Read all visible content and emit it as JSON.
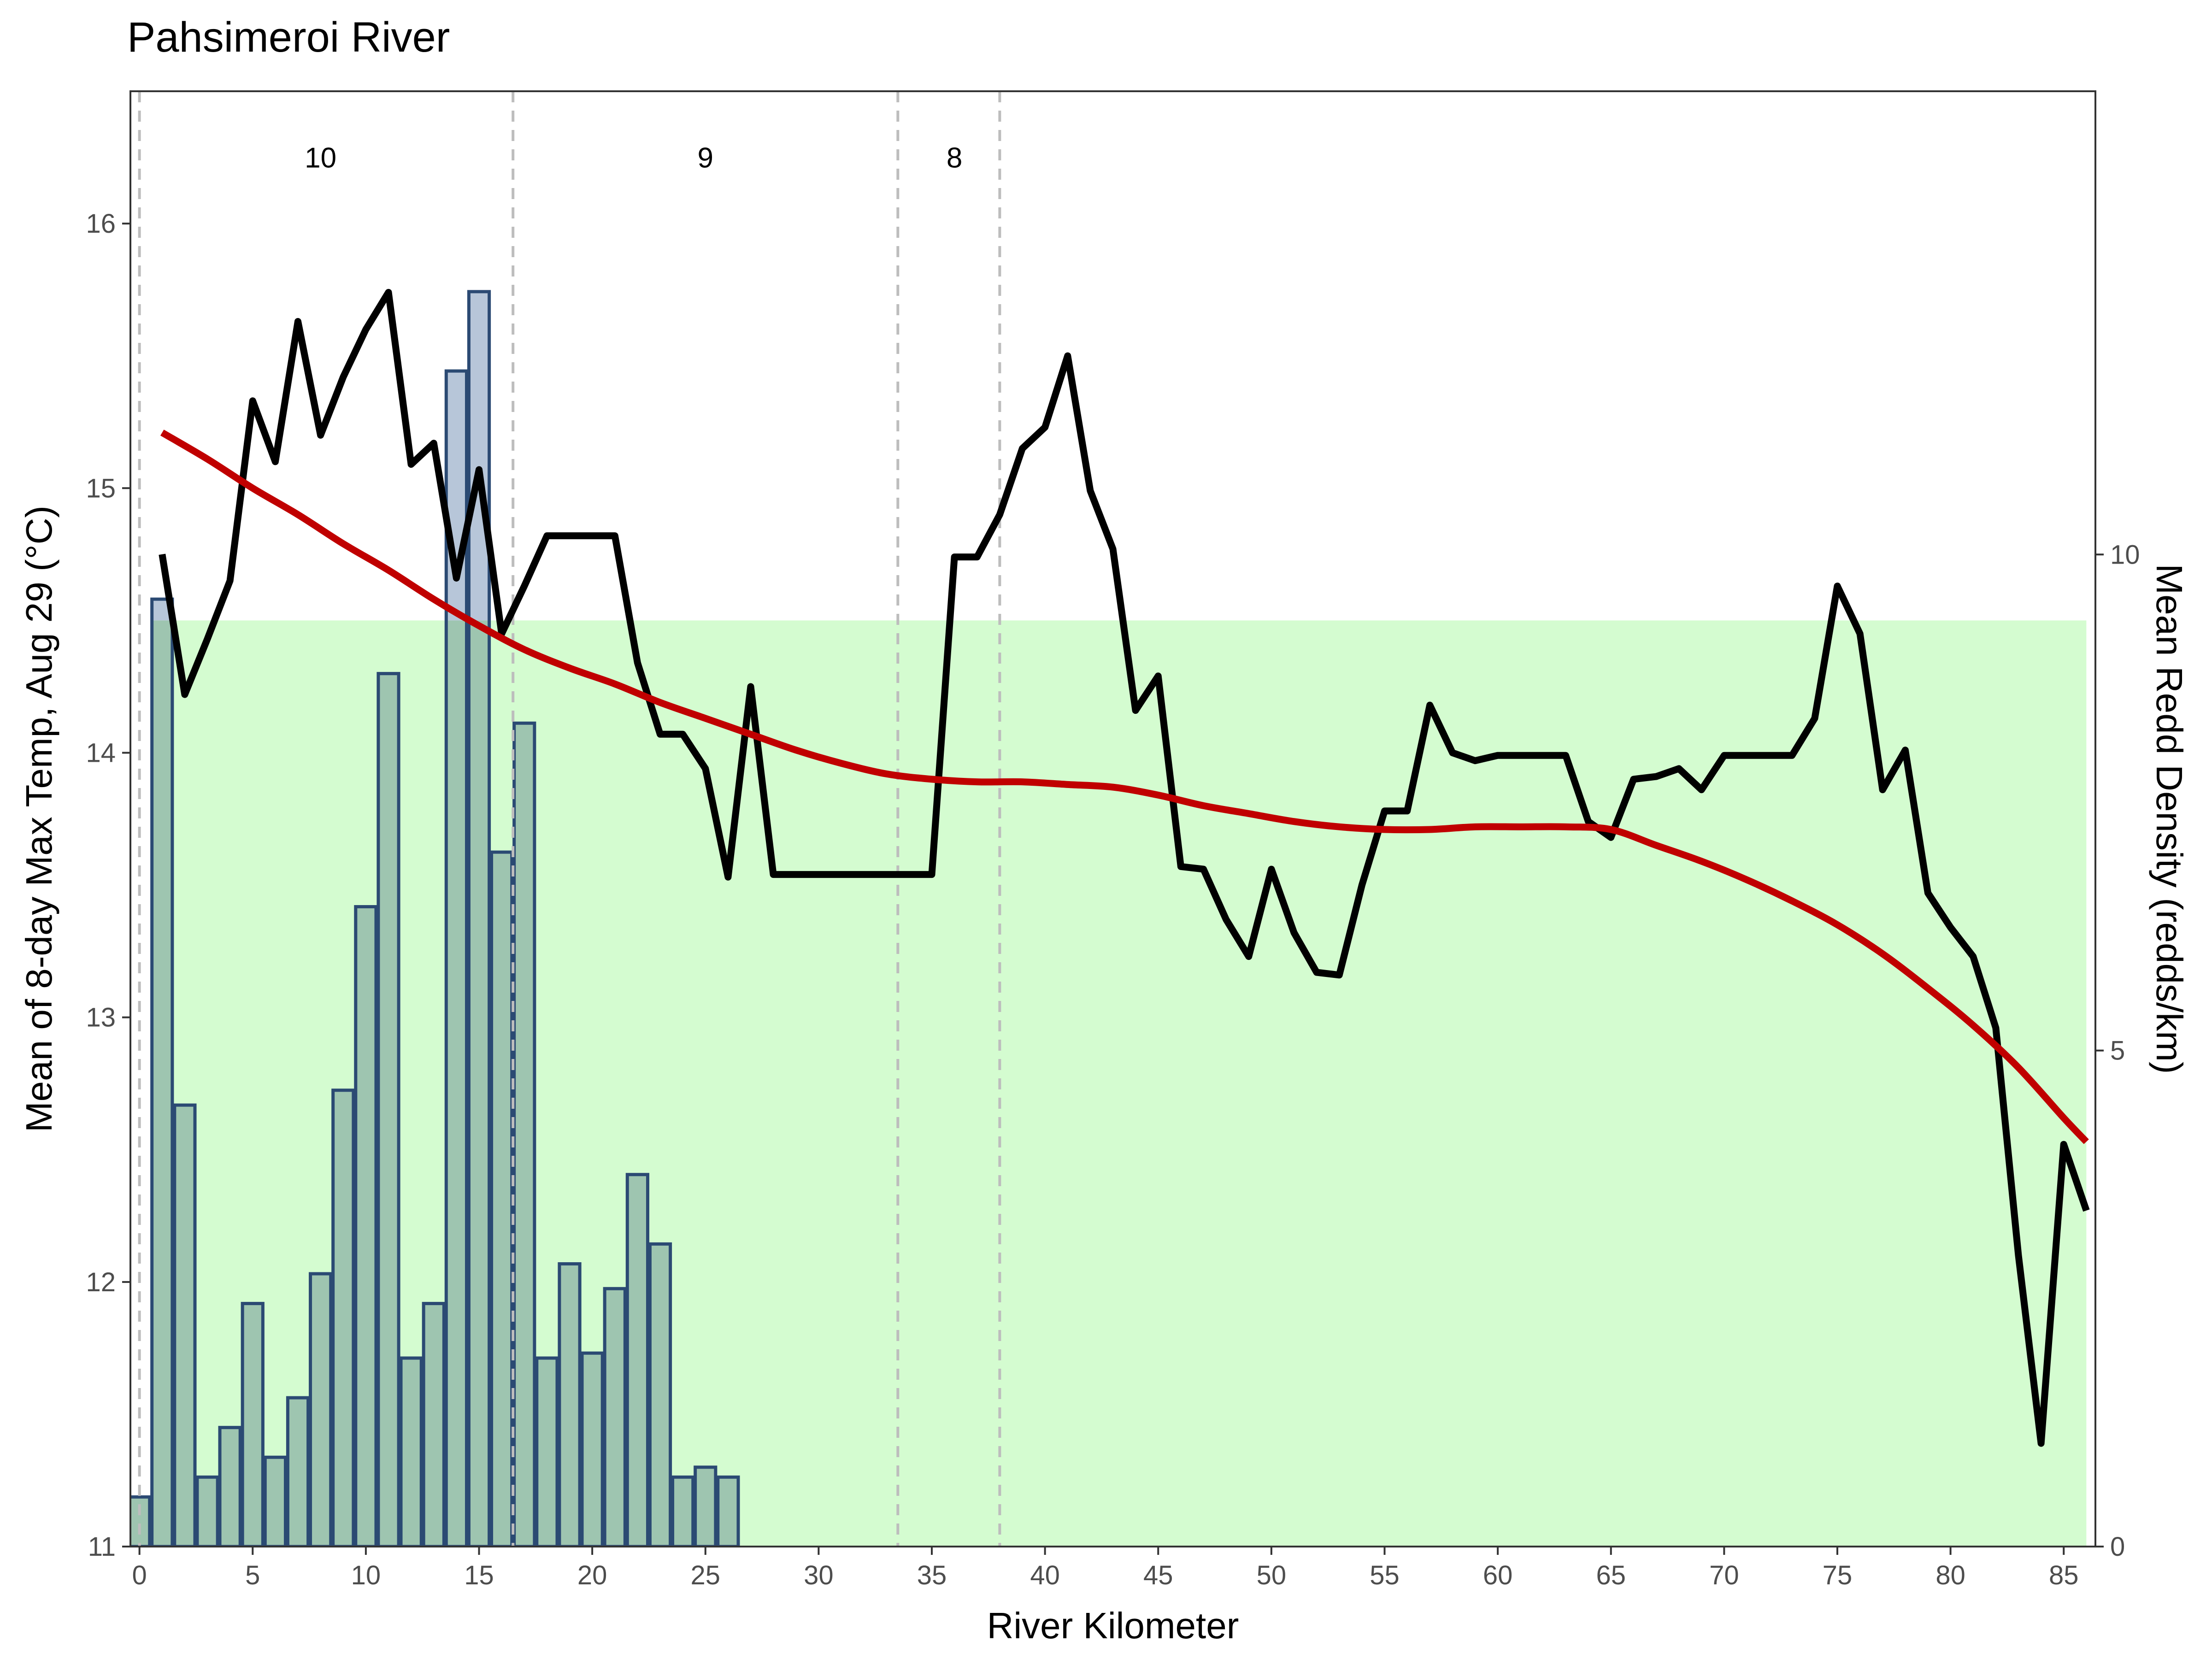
{
  "chart_data": {
    "type": "bar+line",
    "title": "Pahsimeroi River",
    "xlabel": "River Kilometer",
    "ylabel_left": "Mean of 8-day Max Temp, Aug 29 (°C)",
    "ylabel_right": "Mean Redd Density (redds/km)",
    "xlim": [
      -0.4,
      86.4
    ],
    "ylim_left": [
      11,
      16.5
    ],
    "ylim_right": [
      0,
      14.67
    ],
    "x_ticks": [
      0,
      5,
      10,
      15,
      20,
      25,
      30,
      35,
      40,
      45,
      50,
      55,
      60,
      65,
      70,
      75,
      80,
      85
    ],
    "x_tick_labels": [
      "0",
      "5",
      "10",
      "15",
      "20",
      "25",
      "30",
      "35",
      "40",
      "45",
      "50",
      "55",
      "60",
      "65",
      "70",
      "75",
      "80",
      "85"
    ],
    "y_ticks_left": [
      11,
      12,
      13,
      14,
      15,
      16
    ],
    "y_tick_labels_left": [
      "11",
      "12",
      "13",
      "14",
      "15",
      "16"
    ],
    "y_ticks_right": [
      0,
      5,
      10
    ],
    "y_tick_labels_right": [
      "0",
      "5",
      "10"
    ],
    "grid": false,
    "colors": {
      "band": "#d4fcd0",
      "bar_fill_low": "#9ec5b0",
      "bar_fill_high": "#b7c6d9",
      "bar_stroke": "#2b4a73",
      "temp_line": "#000000",
      "smooth_line": "#c00000",
      "vline": "#bdbdbd",
      "panel_border": "#333333"
    },
    "suitable_band": {
      "y_from": 11,
      "y_to": 14.5,
      "x_from": 0.5,
      "x_to": 86
    },
    "segments": {
      "boundaries_x": [
        0,
        16.5,
        33.5,
        38
      ],
      "labels": [
        {
          "text": "10",
          "x": 8
        },
        {
          "text": "9",
          "x": 25
        },
        {
          "text": "8",
          "x": 36
        }
      ],
      "label_y": 16.25
    },
    "redd_density_bars": {
      "x": [
        0,
        1,
        2,
        3,
        4,
        5,
        6,
        7,
        8,
        9,
        10,
        11,
        12,
        13,
        14,
        15,
        16,
        17,
        18,
        19,
        20,
        21,
        22,
        23,
        24,
        25,
        26
      ],
      "values": [
        0.5,
        9.55,
        4.45,
        0.7,
        1.2,
        2.45,
        0.9,
        1.5,
        2.75,
        4.6,
        6.45,
        8.8,
        1.9,
        2.45,
        11.85,
        12.65,
        7.0,
        8.3,
        1.9,
        2.85,
        1.95,
        2.6,
        3.75,
        3.05,
        0.7,
        0.8,
        0.7
      ]
    },
    "temperature_line": {
      "x": [
        1,
        2,
        3,
        4,
        5,
        6,
        7,
        8,
        9,
        10,
        11,
        12,
        13,
        14,
        15,
        16,
        17,
        18,
        19,
        20,
        21,
        22,
        23,
        24,
        25,
        26,
        27,
        28,
        29,
        30,
        31,
        32,
        33,
        34,
        35,
        36,
        37,
        38,
        39,
        40,
        41,
        42,
        43,
        44,
        45,
        46,
        47,
        48,
        49,
        50,
        51,
        52,
        53,
        54,
        55,
        56,
        57,
        58,
        59,
        60,
        61,
        62,
        63,
        64,
        65,
        66,
        67,
        68,
        69,
        70,
        71,
        72,
        73,
        74,
        75,
        76,
        77,
        78,
        79,
        80,
        81,
        82,
        83,
        84,
        85,
        86
      ],
      "values": [
        14.75,
        14.22,
        14.43,
        14.65,
        15.33,
        15.1,
        15.63,
        15.2,
        15.42,
        15.6,
        15.74,
        15.09,
        15.17,
        14.66,
        15.07,
        14.45,
        14.63,
        14.82,
        14.82,
        14.82,
        14.82,
        14.34,
        14.07,
        14.07,
        13.94,
        13.53,
        14.25,
        13.54,
        13.54,
        13.54,
        13.54,
        13.54,
        13.54,
        13.54,
        13.54,
        14.74,
        14.74,
        14.9,
        15.15,
        15.23,
        15.5,
        14.99,
        14.77,
        14.16,
        14.29,
        13.57,
        13.56,
        13.37,
        13.23,
        13.56,
        13.32,
        13.17,
        13.16,
        13.5,
        13.78,
        13.78,
        14.18,
        14.0,
        13.97,
        13.99,
        13.99,
        13.99,
        13.99,
        13.74,
        13.68,
        13.9,
        13.91,
        13.94,
        13.86,
        13.99,
        13.99,
        13.99,
        13.99,
        14.13,
        14.63,
        14.45,
        13.86,
        14.01,
        13.47,
        13.34,
        13.23,
        12.96,
        12.1,
        11.39,
        12.52,
        12.27
      ]
    },
    "smoothed_trend": {
      "x": [
        1,
        3,
        5,
        7,
        9,
        11,
        13,
        15,
        17,
        19,
        21,
        23,
        25,
        27,
        29,
        31,
        33,
        35,
        37,
        39,
        41,
        43,
        45,
        47,
        49,
        51,
        53,
        55,
        57,
        59,
        61,
        63,
        65,
        67,
        69,
        71,
        73,
        75,
        77,
        79,
        81,
        83,
        85,
        86
      ],
      "values": [
        15.21,
        15.11,
        15.0,
        14.9,
        14.79,
        14.69,
        14.58,
        14.48,
        14.39,
        14.32,
        14.26,
        14.19,
        14.13,
        14.07,
        14.01,
        13.96,
        13.92,
        13.9,
        13.89,
        13.89,
        13.88,
        13.87,
        13.84,
        13.8,
        13.77,
        13.74,
        13.72,
        13.71,
        13.71,
        13.72,
        13.72,
        13.72,
        13.71,
        13.65,
        13.59,
        13.52,
        13.44,
        13.35,
        13.24,
        13.11,
        12.97,
        12.81,
        12.62,
        12.53
      ]
    }
  }
}
